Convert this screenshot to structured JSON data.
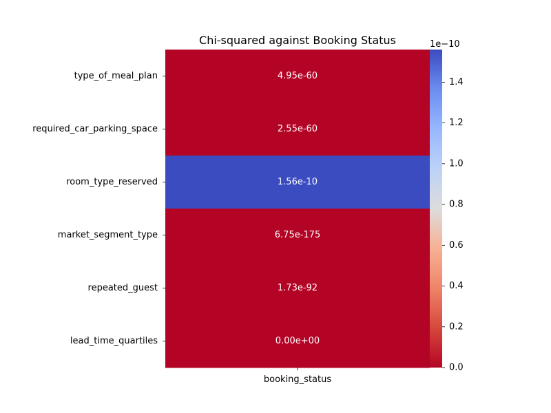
{
  "chart_data": {
    "type": "heatmap",
    "title": "Chi-squared against Booking Status",
    "xlabel": "",
    "ylabel": "",
    "columns": [
      "booking_status"
    ],
    "rows": [
      "type_of_meal_plan",
      "required_car_parking_space",
      "room_type_reserved",
      "market_segment_type",
      "repeated_guest",
      "lead_time_quartiles"
    ],
    "values": [
      4.95e-60,
      2.55e-60,
      1.56e-10,
      6.75e-175,
      1.73e-92,
      0.0
    ],
    "annotations": [
      "4.95e-60",
      "2.55e-60",
      "1.56e-10",
      "6.75e-175",
      "1.73e-92",
      "0.00e+00"
    ],
    "colormap": "coolwarm (reversed)",
    "color_low": "#b40426",
    "color_high": "#3b4cc0",
    "annotation_color": "#ffffff",
    "colorbar": {
      "min": 0,
      "max": 1.56e-10,
      "multiplier": "1e−10",
      "ticks": [
        0.0,
        0.2,
        0.4,
        0.6,
        0.8,
        1.0,
        1.2,
        1.4
      ],
      "tick_labels": [
        "0.0",
        "0.2",
        "0.4",
        "0.6",
        "0.8",
        "1.0",
        "1.2",
        "1.4"
      ]
    },
    "grid": false,
    "legend": "colorbar-right"
  }
}
